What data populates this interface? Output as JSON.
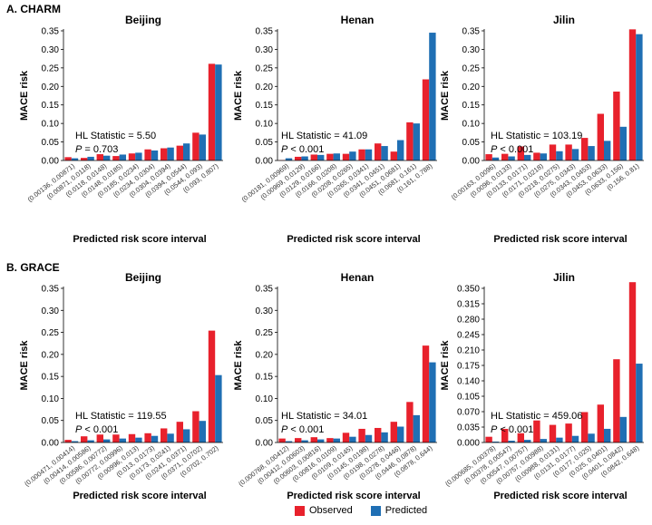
{
  "sections": [
    {
      "label": "A. CHARM"
    },
    {
      "label": "B. GRACE"
    }
  ],
  "legend": {
    "observed_label": "Observed",
    "predicted_label": "Predicted",
    "observed_color": "#e8212c",
    "predicted_color": "#1f6fb4"
  },
  "chart_data": [
    {
      "type": "bar",
      "section": "A. CHARM",
      "title": "Beijing",
      "xlabel": "Predicted risk score interval",
      "ylabel": "MACE risk",
      "ylim": [
        0,
        0.35
      ],
      "yticks": [
        "0.00",
        "0.05",
        "0.10",
        "0.15",
        "0.20",
        "0.25",
        "0.30",
        "0.35"
      ],
      "categories": [
        "(0.00136, 0.00871)",
        "(0.00871, 0.0118)",
        "(0.0118, 0.0148)",
        "(0.0148, 0.0185)",
        "(0.0185, 0.0234)",
        "(0.0234, 0.0304)",
        "(0.0304, 0.0394)",
        "(0.0394, 0.0544)",
        "(0.0544, 0.093)",
        "(0.093, 0.807)"
      ],
      "series": [
        {
          "name": "Observed",
          "values": [
            0.009,
            0.007,
            0.017,
            0.012,
            0.019,
            0.03,
            0.033,
            0.04,
            0.075,
            0.261
          ]
        },
        {
          "name": "Predicted",
          "values": [
            0.006,
            0.01,
            0.013,
            0.016,
            0.021,
            0.027,
            0.035,
            0.046,
            0.07,
            0.259
          ]
        }
      ],
      "stat_line1": "HL Statistic = 5.50",
      "stat_p_label": "P",
      "stat_p_text": " = 0.703"
    },
    {
      "type": "bar",
      "section": "A. CHARM",
      "title": "Henan",
      "xlabel": "Predicted risk score interval",
      "ylabel": "MACE risk",
      "ylim": [
        0,
        0.35
      ],
      "yticks": [
        "0.00",
        "0.05",
        "0.10",
        "0.15",
        "0.20",
        "0.25",
        "0.30",
        "0.35"
      ],
      "categories": [
        "(0.00181, 0.00969)",
        "(0.00969, 0.0129)",
        "(0.0129, 0.0166)",
        "(0.0166, 0.0208)",
        "(0.0208, 0.0265)",
        "(0.0265, 0.0341)",
        "(0.0341, 0.0451)",
        "(0.0451, 0.0681)",
        "(0.0681, 0.161)",
        "(0.161, 0.788)"
      ],
      "series": [
        {
          "name": "Observed",
          "values": [
            0.001,
            0.01,
            0.016,
            0.018,
            0.018,
            0.03,
            0.046,
            0.024,
            0.103,
            0.219
          ]
        },
        {
          "name": "Predicted",
          "values": [
            0.006,
            0.011,
            0.015,
            0.019,
            0.024,
            0.03,
            0.039,
            0.055,
            0.1,
            0.345
          ]
        }
      ],
      "stat_line1": "HL Statistic = 41.09",
      "stat_p_label": "P",
      "stat_p_text": " < 0.001"
    },
    {
      "type": "bar",
      "section": "A. CHARM",
      "title": "Jilin",
      "xlabel": "Predicted risk score interval",
      "ylabel": "MACE risk",
      "ylim": [
        0,
        0.35
      ],
      "yticks": [
        "0.00",
        "0.05",
        "0.10",
        "0.15",
        "0.20",
        "0.25",
        "0.30",
        "0.35"
      ],
      "categories": [
        "(0.00163, 0.0096)",
        "(0.0096, 0.0133)",
        "(0.0133, 0.0171)",
        "(0.0171, 0.0218)",
        "(0.0218, 0.0275)",
        "(0.0275, 0.0343)",
        "(0.0343, 0.0453)",
        "(0.0453, 0.0633)",
        "(0.0633, 0.156)",
        "(0.156, 0.81)"
      ],
      "series": [
        {
          "name": "Observed",
          "values": [
            0.017,
            0.018,
            0.038,
            0.021,
            0.043,
            0.043,
            0.061,
            0.126,
            0.186,
            0.354
          ]
        },
        {
          "name": "Predicted",
          "values": [
            0.008,
            0.011,
            0.015,
            0.019,
            0.025,
            0.031,
            0.039,
            0.053,
            0.091,
            0.341
          ]
        }
      ],
      "stat_line1": "HL Statistic = 103.19",
      "stat_p_label": "P",
      "stat_p_text": " < 0.001"
    },
    {
      "type": "bar",
      "section": "B. GRACE",
      "title": "Beijing",
      "xlabel": "Predicted risk score interval",
      "ylabel": "MACE risk",
      "ylim": [
        0,
        0.35
      ],
      "yticks": [
        "0.00",
        "0.05",
        "0.10",
        "0.15",
        "0.20",
        "0.25",
        "0.30",
        "0.35"
      ],
      "categories": [
        "(0.000471, 0.00414)",
        "(0.00414, 0.00586)",
        "(0.00586, 0.00772)",
        "(0.00772, 0.00996)",
        "(0.00996, 0.013)",
        "(0.013, 0.0173)",
        "(0.0173, 0.0241)",
        "(0.0241, 0.0371)",
        "(0.0371, 0.0702)",
        "(0.0702, 0.702)"
      ],
      "series": [
        {
          "name": "Observed",
          "values": [
            0.006,
            0.014,
            0.018,
            0.018,
            0.019,
            0.021,
            0.032,
            0.047,
            0.071,
            0.254
          ]
        },
        {
          "name": "Predicted",
          "values": [
            0.003,
            0.005,
            0.007,
            0.009,
            0.011,
            0.015,
            0.02,
            0.03,
            0.049,
            0.153
          ]
        }
      ],
      "stat_line1": "HL Statistic = 119.55",
      "stat_p_label": "P",
      "stat_p_text": " < 0.001"
    },
    {
      "type": "bar",
      "section": "B. GRACE",
      "title": "Henan",
      "xlabel": "Predicted risk score interval",
      "ylabel": "MACE risk",
      "ylim": [
        0,
        0.35
      ],
      "yticks": [
        "0.00",
        "0.05",
        "0.10",
        "0.15",
        "0.20",
        "0.25",
        "0.30",
        "0.35"
      ],
      "categories": [
        "(0.000768, 0.00412)",
        "(0.00412, 0.00603)",
        "(0.00603, 0.00816)",
        "(0.00816, 0.0109)",
        "(0.0109, 0.0145)",
        "(0.0145, 0.0198)",
        "(0.0198, 0.0278)",
        "(0.0278, 0.0446)",
        "(0.0446, 0.0878)",
        "(0.0878, 0.644)"
      ],
      "series": [
        {
          "name": "Observed",
          "values": [
            0.009,
            0.01,
            0.012,
            0.01,
            0.022,
            0.031,
            0.033,
            0.047,
            0.092,
            0.22
          ]
        },
        {
          "name": "Predicted",
          "values": [
            0.003,
            0.005,
            0.007,
            0.009,
            0.013,
            0.017,
            0.023,
            0.036,
            0.062,
            0.182
          ]
        }
      ],
      "stat_line1": "HL Statistic = 34.01",
      "stat_p_label": "P",
      "stat_p_text": " < 0.001"
    },
    {
      "type": "bar",
      "section": "B. GRACE",
      "title": "Jilin",
      "xlabel": "Predicted risk score interval",
      "ylabel": "MACE risk",
      "ylim": [
        0,
        0.35
      ],
      "yticks": [
        "0.000",
        "0.035",
        "0.070",
        "0.105",
        "0.140",
        "0.175",
        "0.210",
        "0.245",
        "0.280",
        "0.315",
        "0.350"
      ],
      "categories": [
        "(0.000685, 0.00378)",
        "(0.00378, 0.00547)",
        "(0.00547, 0.00757)",
        "(0.00757, 0.00988)",
        "(0.00988, 0.0131)",
        "(0.0131, 0.0177)",
        "(0.0177, 0.025)",
        "(0.025, 0.0401)",
        "(0.0401, 0.0842)",
        "(0.0842, 0.648)"
      ],
      "series": [
        {
          "name": "Observed",
          "values": [
            0.013,
            0.031,
            0.021,
            0.05,
            0.04,
            0.043,
            0.069,
            0.086,
            0.189,
            0.364
          ]
        },
        {
          "name": "Predicted",
          "values": [
            0.002,
            0.004,
            0.006,
            0.008,
            0.011,
            0.015,
            0.02,
            0.031,
            0.058,
            0.179
          ]
        }
      ],
      "stat_line1": "HL Statistic = 459.06",
      "stat_p_label": "P",
      "stat_p_text": " < 0.001"
    }
  ]
}
